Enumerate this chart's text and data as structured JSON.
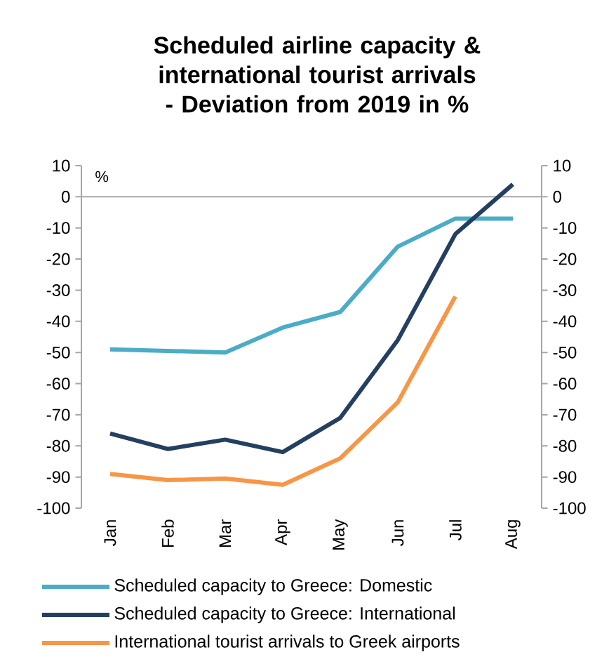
{
  "chart_data": {
    "type": "line",
    "title": "Scheduled airline capacity & international tourist arrivals - Deviation from 2019 in %",
    "ylabel": "%",
    "categories": [
      "Jan",
      "Feb",
      "Mar",
      "Apr",
      "May",
      "Jun",
      "Jul",
      "Aug"
    ],
    "series": [
      {
        "name": "Scheduled capacity to Greece: Domestic",
        "color": "#4bacc6",
        "values": [
          -49,
          -49.5,
          -50,
          -42,
          -37,
          -16,
          -7,
          -7
        ]
      },
      {
        "name": "Scheduled capacity to Greece: International",
        "color": "#243f60",
        "values": [
          -76,
          -81,
          -78,
          -82,
          -71,
          -46,
          -12,
          4
        ]
      },
      {
        "name": "International tourist arrivals to Greek airports",
        "color": "#f79646",
        "values": [
          -89,
          -91,
          -90.5,
          -92.5,
          -84,
          -66,
          -32,
          null
        ]
      }
    ],
    "ylim": [
      -100,
      10
    ],
    "yticks": [
      -100,
      -90,
      -80,
      -70,
      -60,
      -50,
      -40,
      -30,
      -20,
      -10,
      0,
      10
    ],
    "y2lim": [
      -100,
      10
    ],
    "y2ticks": [
      -100,
      -90,
      -80,
      -70,
      -60,
      -50,
      -40,
      -30,
      -20,
      -10,
      0,
      10
    ],
    "ref_lines": [
      {
        "axis": "y",
        "value": 0,
        "color": "#a6a6a6"
      }
    ],
    "legend": "bottom",
    "grid": false,
    "marker": "none",
    "line_style": "solid"
  }
}
